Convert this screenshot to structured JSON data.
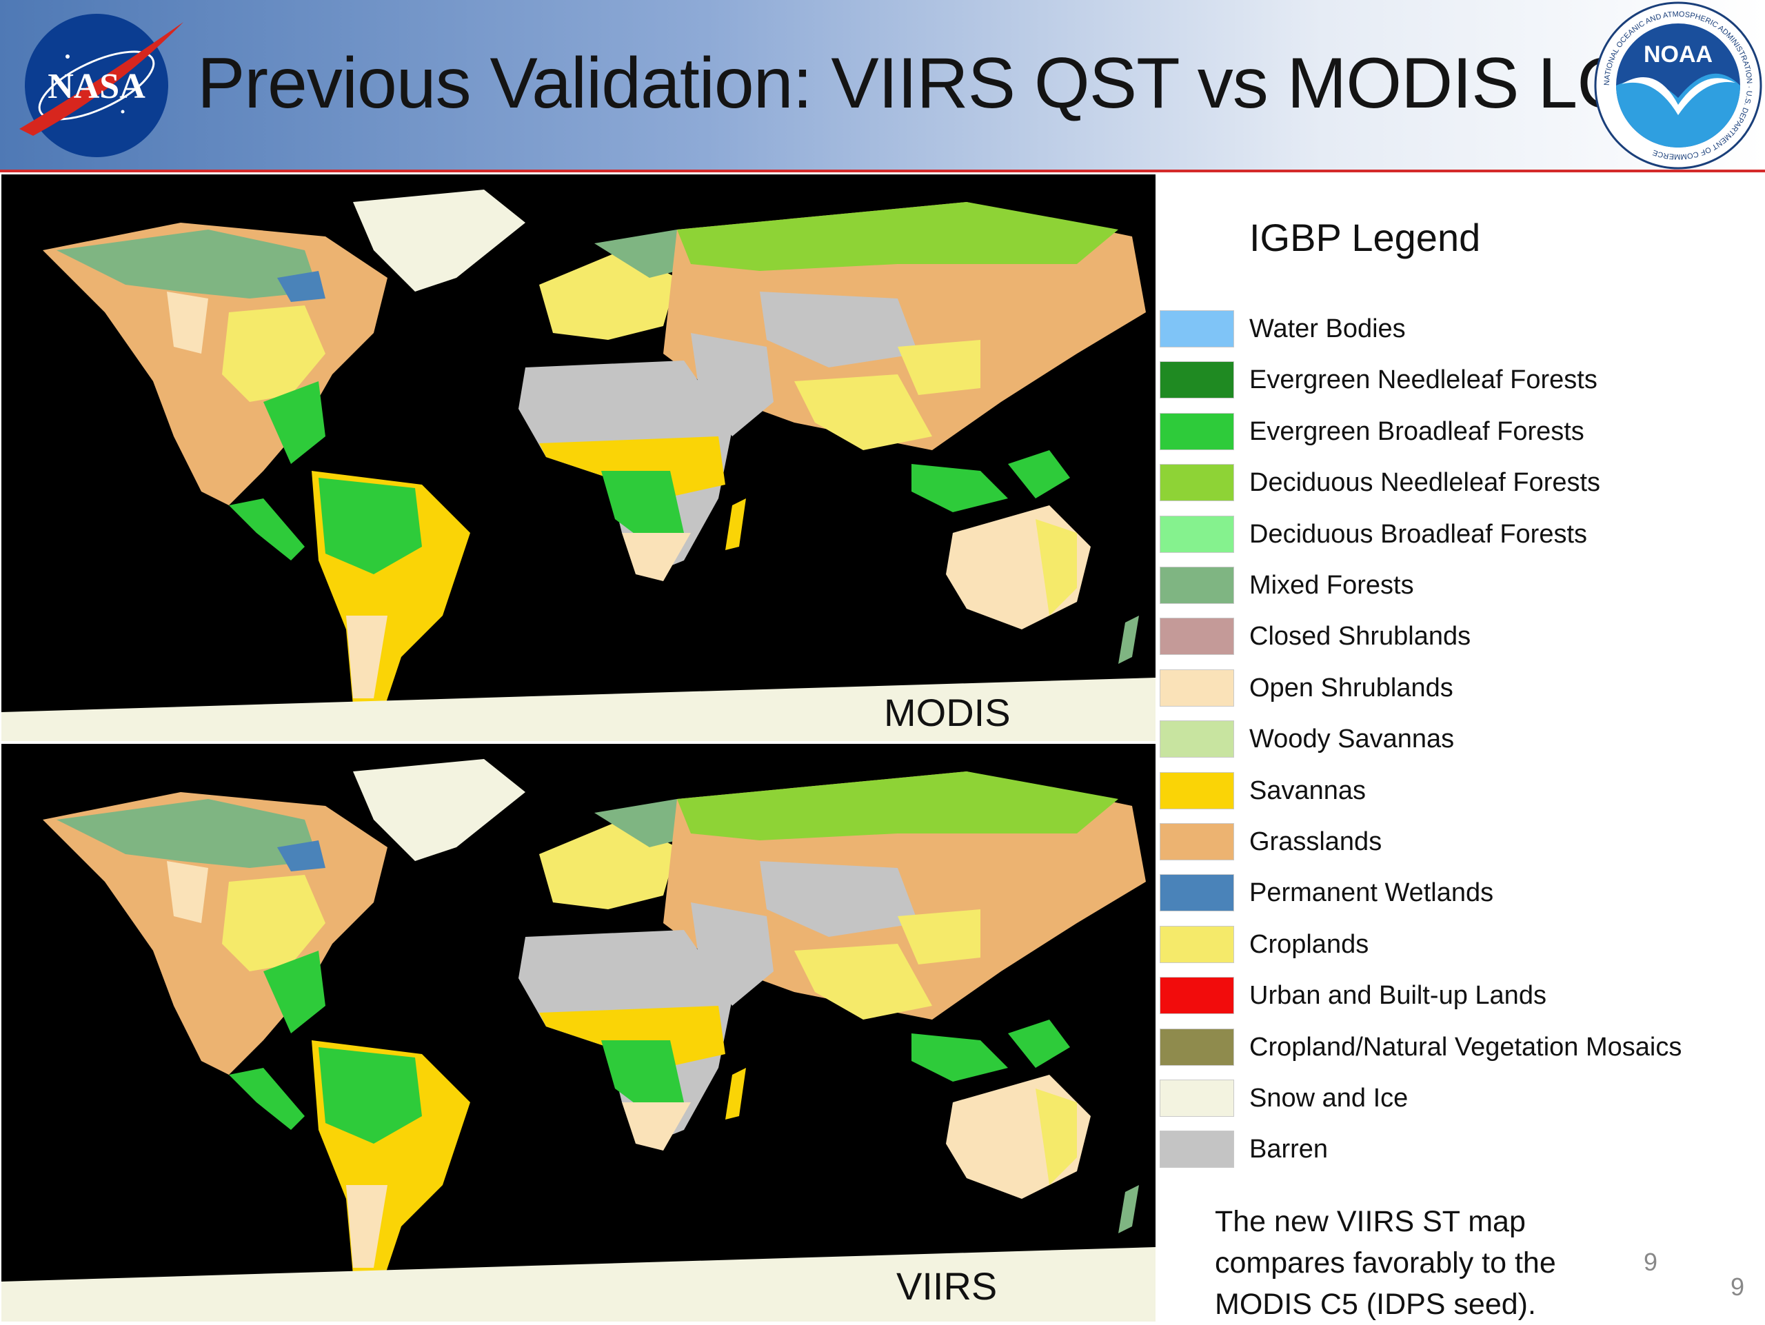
{
  "header": {
    "title": "Previous Validation: VIIRS QST vs MODIS LC",
    "nasa_logo_text": "NASA",
    "noaa_logo_text": "NOAA",
    "noaa_ring_text": "NATIONAL OCEANIC AND ATMOSPHERIC ADMINISTRATION · U.S. DEPARTMENT OF COMMERCE",
    "rule_color": "#d42a2a"
  },
  "maps": {
    "top_label": "MODIS",
    "bottom_label": "VIIRS"
  },
  "legend": {
    "title": "IGBP Legend",
    "items": [
      {
        "label": "Water Bodies",
        "color": "#7fc4f7"
      },
      {
        "label": "Evergreen Needleleaf Forests",
        "color": "#1f8a22"
      },
      {
        "label": "Evergreen Broadleaf Forests",
        "color": "#2ecb3a"
      },
      {
        "label": "Deciduous Needleleaf Forests",
        "color": "#8ed336"
      },
      {
        "label": "Deciduous Broadleaf Forests",
        "color": "#85f28e"
      },
      {
        "label": "Mixed Forests",
        "color": "#7fb582"
      },
      {
        "label": "Closed Shrublands",
        "color": "#c49a98"
      },
      {
        "label": "Open Shrublands",
        "color": "#fae2b8"
      },
      {
        "label": "Woody Savannas",
        "color": "#c8e4a0"
      },
      {
        "label": "Savannas",
        "color": "#fad406"
      },
      {
        "label": "Grasslands",
        "color": "#ecb371"
      },
      {
        "label": "Permanent Wetlands",
        "color": "#4a83b9"
      },
      {
        "label": "Croplands",
        "color": "#f5ea6a"
      },
      {
        "label": "Urban and Built-up Lands",
        "color": "#f20c0c"
      },
      {
        "label": "Cropland/Natural Vegetation Mosaics",
        "color": "#8f8b4d"
      },
      {
        "label": "Snow and Ice",
        "color": "#f3f3e0"
      },
      {
        "label": "Barren",
        "color": "#c4c4c4"
      }
    ]
  },
  "note": "The new VIIRS ST map compares favorably to the MODIS C5 (IDPS seed).",
  "page_numbers": {
    "inner": "9",
    "outer": "9"
  }
}
